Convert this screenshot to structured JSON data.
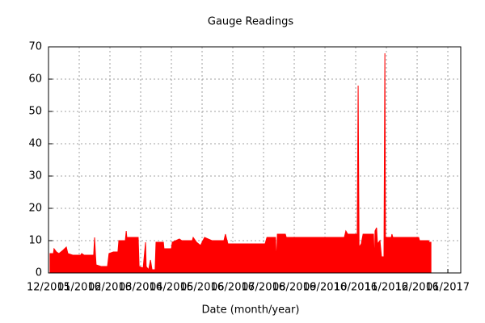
{
  "chart_data": {
    "type": "area",
    "title": "Gauge Readings",
    "x_label": "Date (month/year)",
    "color": "#ff0000",
    "grid": true,
    "x": [
      0.05,
      0.16,
      0.18,
      0.26,
      0.34,
      0.47,
      0.58,
      0.63,
      0.79,
      1.05,
      1.08,
      1.16,
      1.47,
      1.5,
      1.53,
      1.55,
      1.71,
      1.92,
      1.97,
      2.11,
      2.26,
      2.29,
      2.5,
      2.53,
      2.55,
      2.92,
      2.95,
      3.08,
      3.16,
      3.18,
      3.26,
      3.32,
      3.37,
      3.47,
      3.5,
      3.74,
      3.76,
      4,
      4.03,
      4.26,
      4.34,
      4.68,
      4.71,
      4.82,
      4.95,
      5.08,
      5.32,
      5.71,
      5.76,
      5.84,
      7.05,
      7.11,
      7.39,
      7.42,
      7.45,
      7.71,
      7.74,
      9.63,
      9.68,
      9.74,
      10.05,
      10.08,
      10.11,
      10.18,
      10.24,
      10.58,
      10.61,
      10.63,
      10.68,
      10.71,
      10.79,
      10.84,
      10.92,
      10.95,
      10.97,
      11.16,
      11.18,
      11.21,
      12.05,
      12.08,
      12.37,
      12.39,
      12.45
    ],
    "values": [
      6,
      6,
      7.5,
      6.5,
      6,
      7,
      8,
      6,
      5.5,
      5.5,
      6,
      5.5,
      5.5,
      11,
      5.5,
      2.5,
      2,
      2,
      6,
      6.5,
      6.5,
      10,
      10,
      13,
      11,
      11,
      2,
      1.5,
      9.5,
      2,
      1,
      4,
      1,
      1,
      9.5,
      9.5,
      7.5,
      7.5,
      9.5,
      10.5,
      10,
      10,
      11,
      9.5,
      8.5,
      11,
      10,
      10,
      12,
      9,
      9,
      11,
      11,
      3,
      12,
      12,
      11,
      11,
      13,
      12,
      12,
      58,
      8,
      9,
      12,
      12,
      2.5,
      13,
      14,
      9,
      10,
      5,
      5,
      68,
      11,
      11,
      12,
      11,
      11,
      10,
      10,
      9.5,
      9.5
    ],
    "xlim": [
      0,
      13.42
    ],
    "xticks": [
      {
        "value": 0,
        "label": "12/2015"
      },
      {
        "value": 1,
        "label": "01/2016"
      },
      {
        "value": 2,
        "label": "02/2016"
      },
      {
        "value": 3,
        "label": "03/2016"
      },
      {
        "value": 4,
        "label": "04/2016"
      },
      {
        "value": 5,
        "label": "05/2016"
      },
      {
        "value": 6,
        "label": "06/2016"
      },
      {
        "value": 7,
        "label": "07/2016"
      },
      {
        "value": 8,
        "label": "08/2016"
      },
      {
        "value": 9,
        "label": "09/2016"
      },
      {
        "value": 10,
        "label": "10/2016"
      },
      {
        "value": 11,
        "label": "11/2016"
      },
      {
        "value": 12,
        "label": "12/2016"
      },
      {
        "value": 13,
        "label": "01/2017"
      }
    ],
    "ylim": [
      0,
      70
    ],
    "yticks": [
      0,
      10,
      20,
      30,
      40,
      50,
      60,
      70
    ]
  }
}
